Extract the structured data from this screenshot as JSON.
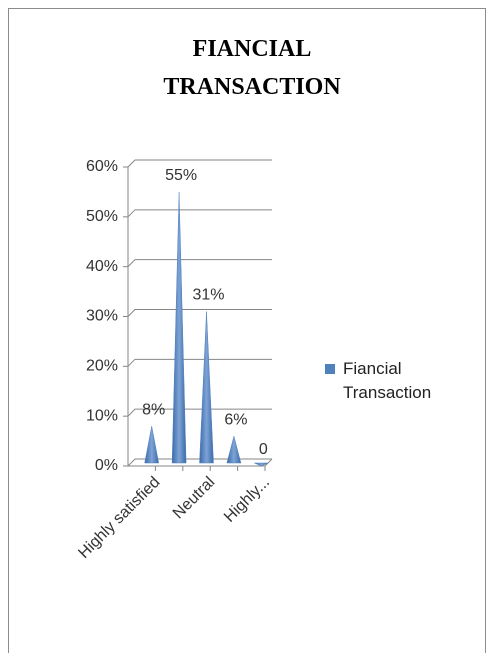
{
  "chart_data": {
    "type": "cone",
    "title": "FIANCIAL TRANSACTION",
    "categories": [
      "Highly satisfied",
      null,
      "Neutral",
      null,
      "Highly..."
    ],
    "series": [
      {
        "name": "Fiancial Transaction",
        "color": "#4f81bd",
        "values": [
          8,
          55,
          31,
          6,
          0
        ],
        "value_labels": [
          "8%",
          "55%",
          "31%",
          "6%",
          "0"
        ]
      }
    ],
    "ylim": [
      0,
      60
    ],
    "yticks": [
      {
        "value": 0,
        "label": "0%"
      },
      {
        "value": 10,
        "label": "10%"
      },
      {
        "value": 20,
        "label": "20%"
      },
      {
        "value": 30,
        "label": "30%"
      },
      {
        "value": 40,
        "label": "40%"
      },
      {
        "value": 50,
        "label": "50%"
      },
      {
        "value": 60,
        "label": "60%"
      }
    ],
    "grid": true,
    "legend": "right"
  }
}
